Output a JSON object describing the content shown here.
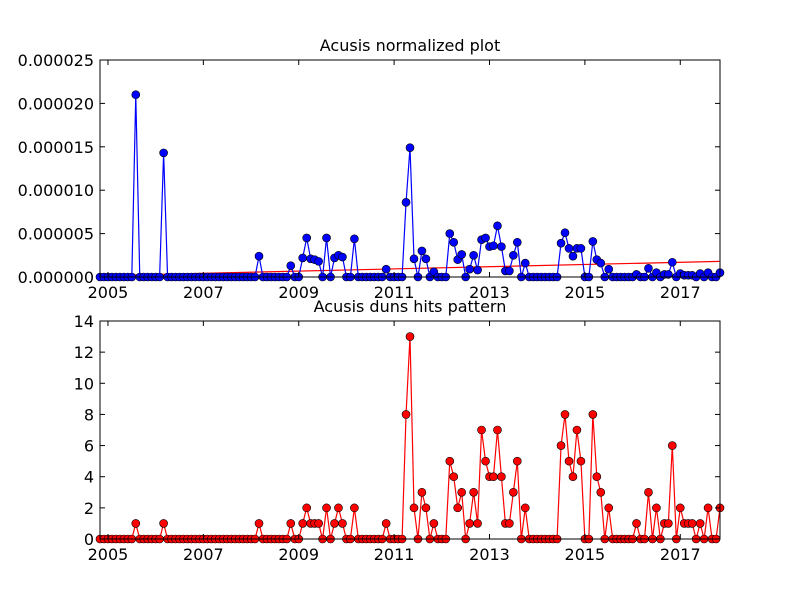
{
  "chart_data": {
    "type": "line",
    "x": [
      2004.833,
      2004.917,
      2005,
      2005.083,
      2005.167,
      2005.25,
      2005.333,
      2005.417,
      2005.5,
      2005.583,
      2005.667,
      2005.75,
      2005.833,
      2005.917,
      2006,
      2006.083,
      2006.167,
      2006.25,
      2006.333,
      2006.417,
      2006.5,
      2006.583,
      2006.667,
      2006.75,
      2006.833,
      2006.917,
      2007,
      2007.083,
      2007.167,
      2007.25,
      2007.333,
      2007.417,
      2007.5,
      2007.583,
      2007.667,
      2007.75,
      2007.833,
      2007.917,
      2008,
      2008.083,
      2008.167,
      2008.25,
      2008.333,
      2008.417,
      2008.5,
      2008.583,
      2008.667,
      2008.75,
      2008.833,
      2008.917,
      2009,
      2009.083,
      2009.167,
      2009.25,
      2009.333,
      2009.417,
      2009.5,
      2009.583,
      2009.667,
      2009.75,
      2009.833,
      2009.917,
      2010,
      2010.083,
      2010.167,
      2010.25,
      2010.333,
      2010.417,
      2010.5,
      2010.583,
      2010.667,
      2010.75,
      2010.833,
      2010.917,
      2011,
      2011.083,
      2011.167,
      2011.25,
      2011.333,
      2011.417,
      2011.5,
      2011.583,
      2011.667,
      2011.75,
      2011.833,
      2011.917,
      2012,
      2012.083,
      2012.167,
      2012.25,
      2012.333,
      2012.417,
      2012.5,
      2012.583,
      2012.667,
      2012.75,
      2012.833,
      2012.917,
      2013,
      2013.083,
      2013.167,
      2013.25,
      2013.333,
      2013.417,
      2013.5,
      2013.583,
      2013.667,
      2013.75,
      2013.833,
      2013.917,
      2014,
      2014.083,
      2014.167,
      2014.25,
      2014.333,
      2014.417,
      2014.5,
      2014.583,
      2014.667,
      2014.75,
      2014.833,
      2014.917,
      2015,
      2015.083,
      2015.167,
      2015.25,
      2015.333,
      2015.417,
      2015.5,
      2015.583,
      2015.667,
      2015.75,
      2015.833,
      2015.917,
      2016,
      2016.083,
      2016.167,
      2016.25,
      2016.333,
      2016.417,
      2016.5,
      2016.583,
      2016.667,
      2016.75,
      2016.833,
      2016.917,
      2017,
      2017.083,
      2017.167,
      2017.25,
      2017.333,
      2017.417,
      2017.5,
      2017.583,
      2017.667,
      2017.75,
      2017.833
    ],
    "xlim": [
      2004.833,
      2017.833
    ],
    "xticks": [
      2005,
      2007,
      2009,
      2011,
      2013,
      2015,
      2017
    ],
    "panels": [
      {
        "title": "Acusis normalized plot",
        "color": "#0000ff",
        "ylim": [
          0,
          2.5e-05
        ],
        "yticks": [
          {
            "value": 0,
            "label": "0.000000"
          },
          {
            "value": 5e-06,
            "label": "0.000005"
          },
          {
            "value": 1e-05,
            "label": "0.000010"
          },
          {
            "value": 1.5e-05,
            "label": "0.000015"
          },
          {
            "value": 2e-05,
            "label": "0.000020"
          },
          {
            "value": 2.5e-05,
            "label": "0.000025"
          }
        ],
        "values": [
          0,
          0,
          0,
          0,
          0,
          0,
          0,
          0,
          0,
          2.1e-05,
          0,
          0,
          0,
          0,
          0,
          0,
          1.43e-05,
          0,
          0,
          0,
          0,
          0,
          0,
          0,
          0,
          0,
          0,
          0,
          0,
          0,
          0,
          0,
          0,
          0,
          0,
          0,
          0,
          0,
          0,
          0,
          2.4e-06,
          0,
          0,
          0,
          0,
          0,
          0,
          0,
          1.3e-06,
          0,
          0,
          2.2e-06,
          4.5e-06,
          2.1e-06,
          2e-06,
          1.8e-06,
          0,
          4.5e-06,
          0,
          2.2e-06,
          2.5e-06,
          2.3e-06,
          0,
          0,
          4.4e-06,
          0,
          0,
          0,
          0,
          0,
          0,
          0,
          9e-07,
          0,
          0,
          0,
          0,
          8.6e-06,
          1.49e-05,
          2.1e-06,
          0,
          3e-06,
          2.1e-06,
          0,
          6e-07,
          0,
          0,
          0,
          5e-06,
          4e-06,
          2e-06,
          2.6e-06,
          0,
          9e-07,
          2.5e-06,
          8e-07,
          4.3e-06,
          4.5e-06,
          3.5e-06,
          3.6e-06,
          5.9e-06,
          3.5e-06,
          7e-07,
          7e-07,
          2.5e-06,
          4e-06,
          0,
          1.6e-06,
          0,
          0,
          0,
          0,
          0,
          0,
          0,
          0,
          3.9e-06,
          5.1e-06,
          3.3e-06,
          2.4e-06,
          3.3e-06,
          3.3e-06,
          0,
          0,
          4.1e-06,
          2e-06,
          1.6e-06,
          0,
          9e-07,
          0,
          0,
          0,
          0,
          0,
          0,
          3e-07,
          0,
          0,
          1e-06,
          0,
          5e-07,
          0,
          3e-07,
          3e-07,
          1.7e-06,
          0,
          4e-07,
          2e-07,
          2e-07,
          2e-07,
          0,
          4e-07,
          0,
          5e-07,
          0,
          0,
          5e-07
        ],
        "trend": {
          "color": "#ff0000",
          "x": [
            2004.833,
            2017.833
          ],
          "values": [
            1.5e-07,
            1.8e-06
          ]
        }
      },
      {
        "title": "Acusis duns hits pattern",
        "color": "#ff0000",
        "ylim": [
          0,
          14
        ],
        "yticks": [
          0,
          2,
          4,
          6,
          8,
          10,
          12,
          14
        ],
        "values": [
          0,
          0,
          0,
          0,
          0,
          0,
          0,
          0,
          0,
          1,
          0,
          0,
          0,
          0,
          0,
          0,
          1,
          0,
          0,
          0,
          0,
          0,
          0,
          0,
          0,
          0,
          0,
          0,
          0,
          0,
          0,
          0,
          0,
          0,
          0,
          0,
          0,
          0,
          0,
          0,
          1,
          0,
          0,
          0,
          0,
          0,
          0,
          0,
          1,
          0,
          0,
          1,
          2,
          1,
          1,
          1,
          0,
          2,
          0,
          1,
          2,
          1,
          0,
          0,
          2,
          0,
          0,
          0,
          0,
          0,
          0,
          0,
          1,
          0,
          0,
          0,
          0,
          8,
          13,
          2,
          0,
          3,
          2,
          0,
          1,
          0,
          0,
          0,
          5,
          4,
          2,
          3,
          0,
          1,
          3,
          1,
          7,
          5,
          4,
          4,
          7,
          4,
          1,
          1,
          3,
          5,
          0,
          2,
          0,
          0,
          0,
          0,
          0,
          0,
          0,
          0,
          6,
          8,
          5,
          4,
          7,
          5,
          0,
          0,
          8,
          4,
          3,
          0,
          2,
          0,
          0,
          0,
          0,
          0,
          0,
          1,
          0,
          0,
          3,
          0,
          2,
          0,
          1,
          1,
          6,
          0,
          2,
          1,
          1,
          1,
          0,
          1,
          0,
          2,
          0,
          0,
          2
        ]
      }
    ]
  }
}
